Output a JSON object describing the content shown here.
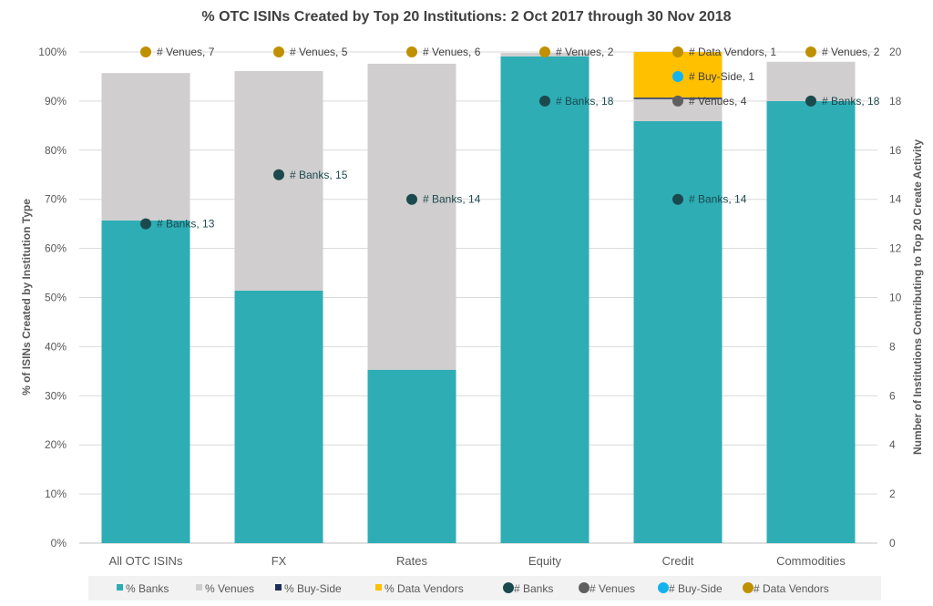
{
  "chart_data": {
    "type": "bar",
    "stacked": true,
    "title": "% OTC ISINs Created by Top 20 Institutions: 2 Oct 2017 through  30 Nov 2018",
    "ylabel": "% of ISINs Created by Institution Type",
    "y2label": "Number of Institutions Contributing to Top 20 Create Activity",
    "ylim": [
      0,
      100
    ],
    "y2lim": [
      0,
      20
    ],
    "yticks": [
      "0%",
      "10%",
      "20%",
      "30%",
      "40%",
      "50%",
      "60%",
      "70%",
      "80%",
      "90%",
      "100%"
    ],
    "y2ticks": [
      "0",
      "2",
      "4",
      "6",
      "8",
      "10",
      "12",
      "14",
      "16",
      "18",
      "20"
    ],
    "grid": true,
    "legend_position": "bottom",
    "categories": [
      "All OTC ISINs",
      "FX",
      "Rates",
      "Equity",
      "Credit",
      "Commodities"
    ],
    "series": [
      {
        "name": "% Banks",
        "color": "#2EADB5",
        "values": [
          65.7,
          51.4,
          35.3,
          99.1,
          85.9,
          90.0
        ]
      },
      {
        "name": "% Venues",
        "color": "#D0CECE",
        "values": [
          30.0,
          44.7,
          62.3,
          0.7,
          4.5,
          8.0
        ]
      },
      {
        "name": "% Buy-Side",
        "color": "#1F2D5C",
        "values": [
          0,
          0,
          0,
          0,
          0.3,
          0
        ]
      },
      {
        "name": "% Data Vendors",
        "color": "#FFC000",
        "values": [
          0,
          0,
          0,
          0,
          9.3,
          0
        ]
      }
    ],
    "scatter_series": [
      {
        "name": "# Banks",
        "color": "#1B4A4E"
      },
      {
        "name": "# Venues",
        "color": "#5F5F5F"
      },
      {
        "name": "# Buy-Side",
        "color": "#14B2EE"
      },
      {
        "name": "# Data Vendors",
        "color": "#BF9000"
      }
    ],
    "points": [
      {
        "category": 0,
        "series": 3,
        "y": 20,
        "label": "# Venues, 7"
      },
      {
        "category": 0,
        "series": 0,
        "y": 13,
        "label": "# Banks, 13"
      },
      {
        "category": 1,
        "series": 3,
        "y": 20,
        "label": "# Venues, 5"
      },
      {
        "category": 1,
        "series": 0,
        "y": 15,
        "label": "# Banks, 15"
      },
      {
        "category": 2,
        "series": 3,
        "y": 20,
        "label": "# Venues, 6"
      },
      {
        "category": 2,
        "series": 0,
        "y": 14,
        "label": "# Banks, 14"
      },
      {
        "category": 3,
        "series": 3,
        "y": 20,
        "label": "# Venues, 2"
      },
      {
        "category": 3,
        "series": 0,
        "y": 18,
        "label": "# Banks, 18"
      },
      {
        "category": 4,
        "series": 3,
        "y": 20,
        "label": "# Data Vendors, 1"
      },
      {
        "category": 4,
        "series": 2,
        "y": 19,
        "label": "# Buy-Side, 1"
      },
      {
        "category": 4,
        "series": 1,
        "y": 18,
        "label": "# Venues, 4"
      },
      {
        "category": 4,
        "series": 0,
        "y": 14,
        "label": "# Banks, 14"
      },
      {
        "category": 5,
        "series": 3,
        "y": 20,
        "label": "# Venues, 2"
      },
      {
        "category": 5,
        "series": 0,
        "y": 18,
        "label": "# Banks, 18"
      }
    ]
  }
}
